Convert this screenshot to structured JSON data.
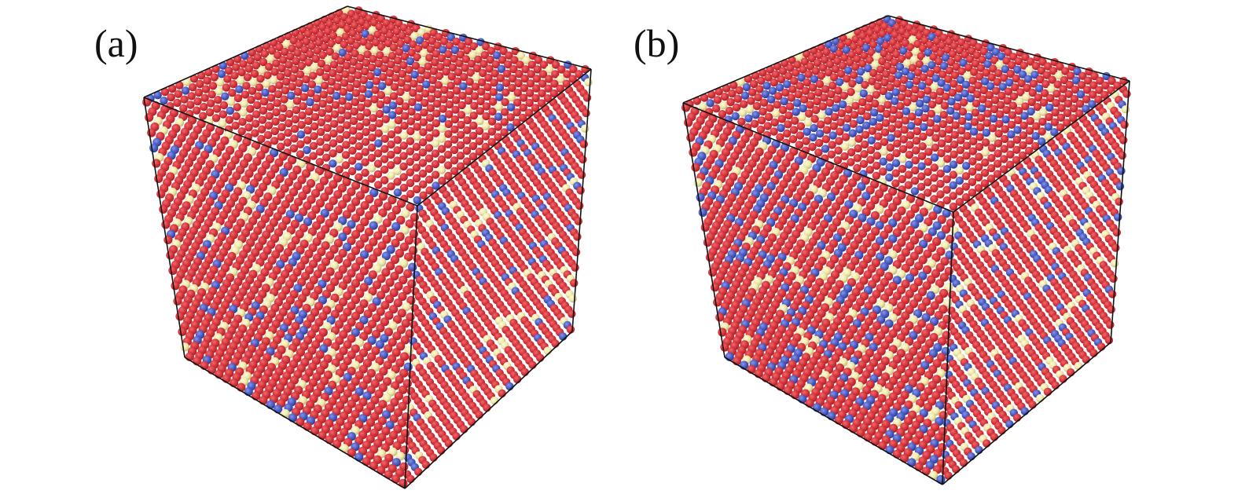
{
  "panels": [
    {
      "id": "a",
      "label": "(a)",
      "minority_fraction": {
        "blue": 0.09,
        "yellow": 0.08
      }
    },
    {
      "id": "b",
      "label": "(b)",
      "minority_fraction": {
        "blue": 0.16,
        "yellow": 0.08
      }
    }
  ],
  "colors": {
    "host_atom": "#d6343a",
    "host_atom_shadow": "#9e1f26",
    "blue_atom": "#4a5cc4",
    "yellow_atom": "#efe8a8",
    "box_edge": "#111111",
    "background": "#ffffff"
  }
}
